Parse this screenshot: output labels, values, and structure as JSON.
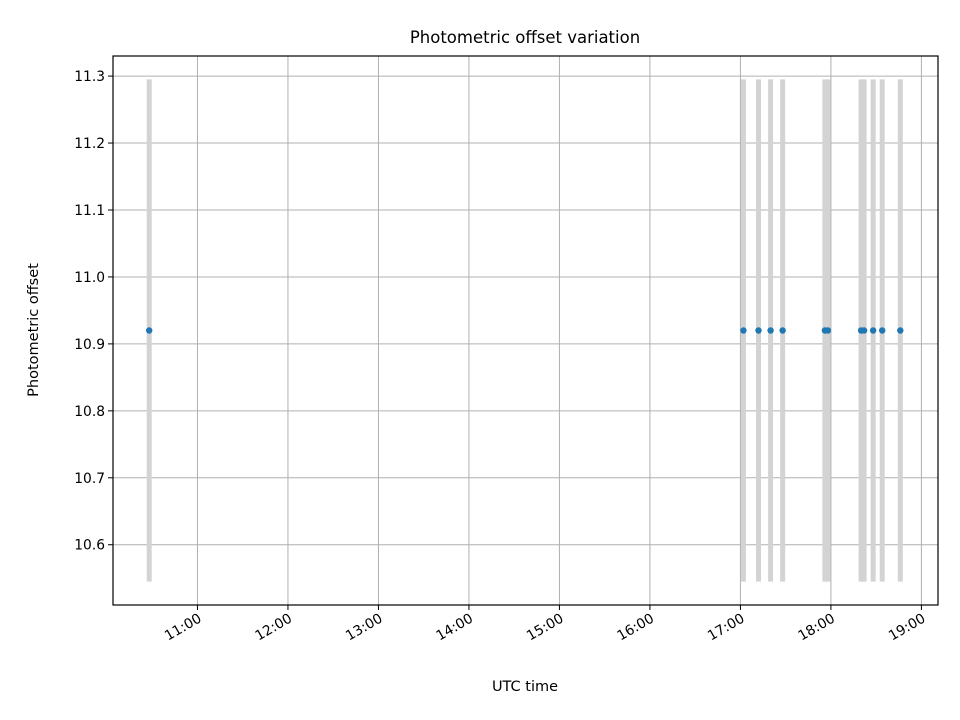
{
  "chart_data": {
    "type": "scatter",
    "title": "Photometric offset variation",
    "xlabel": "UTC time",
    "ylabel": "Photometric offset",
    "x_ticks": [
      "11:00",
      "12:00",
      "13:00",
      "14:00",
      "15:00",
      "16:00",
      "17:00",
      "18:00",
      "19:00"
    ],
    "y_ticks": [
      "10.6",
      "10.7",
      "10.8",
      "10.9",
      "11.0",
      "11.1",
      "11.2",
      "11.3"
    ],
    "xlim": [
      "10:04",
      "19:11"
    ],
    "ylim": [
      10.51,
      11.33
    ],
    "grid": true,
    "series": [
      {
        "x": [
          "10:28",
          "17:02",
          "17:12",
          "17:20",
          "17:28",
          "17:56",
          "17:58",
          "18:20",
          "18:22",
          "18:28",
          "18:34",
          "18:46"
        ],
        "y": [
          10.92,
          10.92,
          10.92,
          10.92,
          10.92,
          10.92,
          10.92,
          10.92,
          10.92,
          10.92,
          10.92,
          10.92
        ],
        "error_low": 10.545,
        "error_high": 11.295
      }
    ],
    "colors": {
      "points": "#1f77b4",
      "error_bars": "#d3d3d3",
      "grid": "#b0b0b0"
    }
  }
}
